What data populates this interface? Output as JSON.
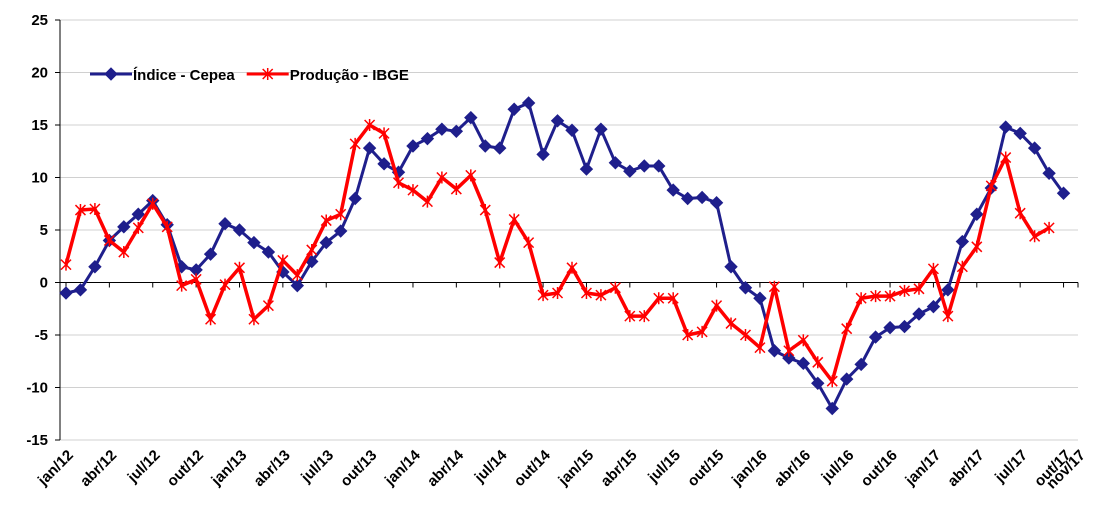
{
  "chart_data": {
    "type": "line",
    "categories": [
      "jan/12",
      null,
      null,
      "abr/12",
      null,
      null,
      "jul/12",
      null,
      null,
      "out/12",
      null,
      null,
      "jan/13",
      null,
      null,
      "abr/13",
      null,
      null,
      "jul/13",
      null,
      null,
      "out/13",
      null,
      null,
      "jan/14",
      null,
      null,
      "abr/14",
      null,
      null,
      "jul/14",
      null,
      null,
      "out/14",
      null,
      null,
      "jan/15",
      null,
      null,
      "abr/15",
      null,
      null,
      "jul/15",
      null,
      null,
      "out/15",
      null,
      null,
      "jan/16",
      null,
      null,
      "abr/16",
      null,
      null,
      "jul/16",
      null,
      null,
      "out/16",
      null,
      null,
      "jan/17",
      null,
      null,
      "abr/17",
      null,
      null,
      "jul/17",
      null,
      null,
      "out/17",
      "nov/17"
    ],
    "series": [
      {
        "name": "Índice - Cepea",
        "color": "#1f1f8c",
        "values": [
          -1,
          -0.7,
          1.5,
          4,
          5.3,
          6.5,
          7.8,
          5.5,
          1.5,
          1.2,
          2.7,
          5.6,
          5,
          3.8,
          2.9,
          1,
          -0.3,
          2,
          3.8,
          4.9,
          8,
          12.8,
          11.3,
          10.5,
          13,
          13.7,
          14.6,
          14.4,
          15.7,
          13,
          12.8,
          16.5,
          17.1,
          12.2,
          15.4,
          14.5,
          10.8,
          14.6,
          11.4,
          10.6,
          11.1,
          11.1,
          8.8,
          8,
          8.1,
          7.6,
          1.5,
          -0.5,
          -1.5,
          -6.5,
          -7.2,
          -7.7,
          -9.6,
          -12,
          -9.2,
          -7.8,
          -5.2,
          -4.3,
          -4.2,
          -3,
          -2.3,
          -0.7,
          3.9,
          6.5,
          9,
          14.8,
          14.2,
          12.8,
          10.4,
          8.5,
          null
        ]
      },
      {
        "name": "Produção - IBGE",
        "color": "#ff0000",
        "values": [
          1.7,
          6.9,
          7,
          4,
          2.9,
          5.2,
          7.5,
          5.3,
          -0.3,
          0.3,
          -3.5,
          -0.2,
          1.4,
          -3.5,
          -2.2,
          2.1,
          0.7,
          3.1,
          5.9,
          6.5,
          13.2,
          15,
          14.2,
          9.5,
          8.8,
          7.7,
          10,
          8.9,
          10.2,
          6.9,
          1.9,
          6,
          3.8,
          -1.2,
          -1,
          1.4,
          -1,
          -1.2,
          -0.5,
          -3.2,
          -3.2,
          -1.5,
          -1.5,
          -5,
          -4.7,
          -2.2,
          -3.9,
          -5,
          -6.2,
          -0.4,
          -6.5,
          -5.5,
          -7.6,
          -9.4,
          -4.4,
          -1.5,
          -1.3,
          -1.3,
          -0.8,
          -0.6,
          1.3,
          -3.2,
          1.5,
          3.4,
          9.2,
          11.9,
          6.6,
          4.4,
          5.2,
          null,
          null
        ]
      }
    ],
    "ylim": [
      -15,
      25
    ],
    "yticks": [
      -15,
      -10,
      -5,
      0,
      5,
      10,
      15,
      20,
      25
    ],
    "grid": true,
    "legend": "top-left"
  }
}
